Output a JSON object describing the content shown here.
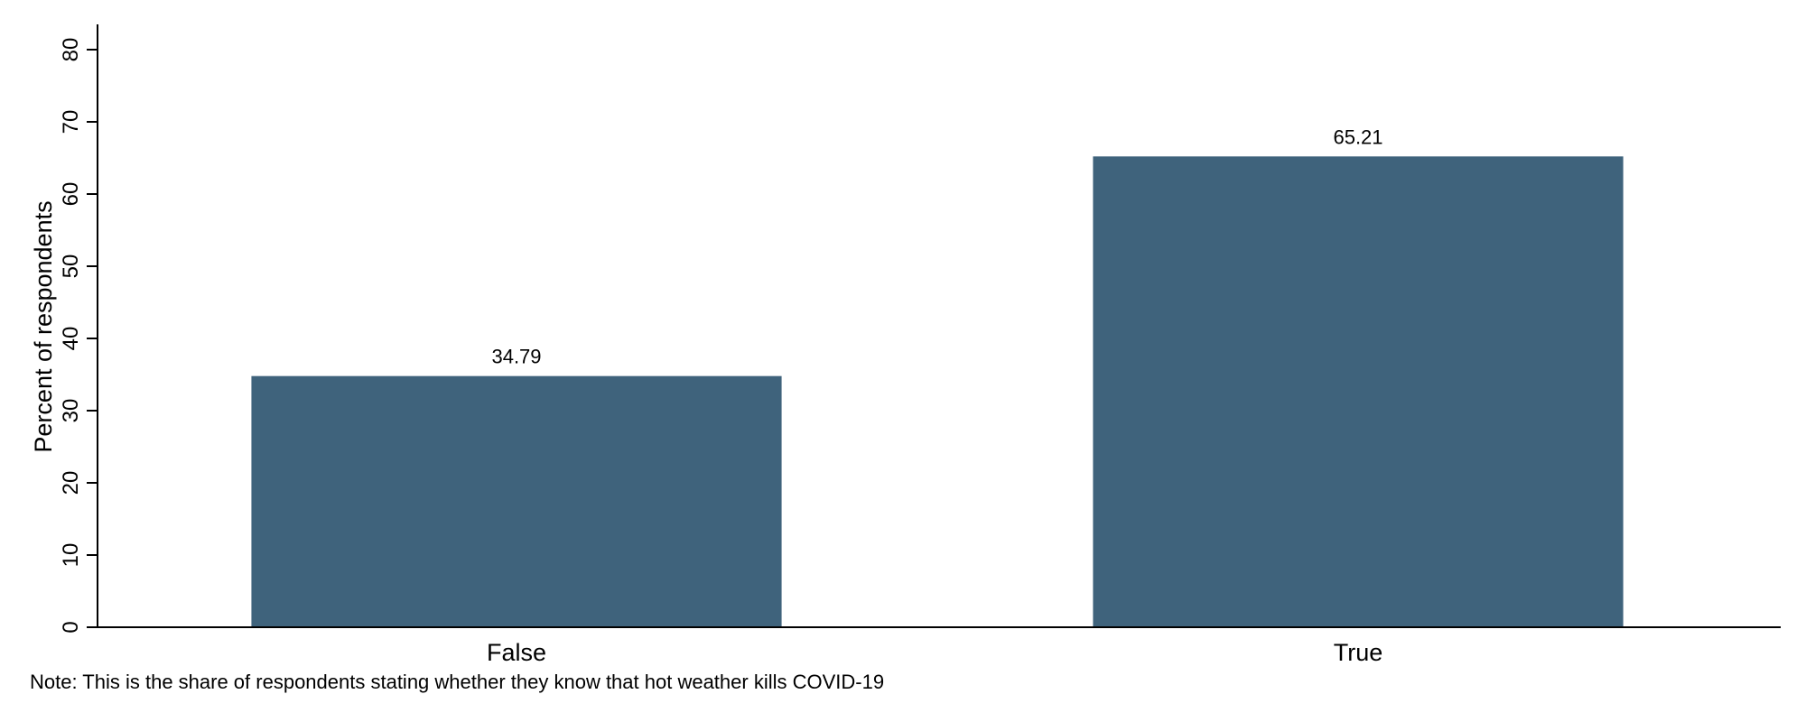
{
  "chart_data": {
    "type": "bar",
    "categories": [
      "False",
      "True"
    ],
    "values": [
      34.79,
      65.21
    ],
    "value_labels": [
      "34.79",
      "65.21"
    ],
    "title": "",
    "xlabel": "",
    "ylabel": "Percent of respondents",
    "ylim": [
      0,
      83
    ],
    "yticks": [
      0,
      10,
      20,
      30,
      40,
      50,
      60,
      70,
      80
    ],
    "grid": false,
    "bar_color": "#3f637c",
    "note": "Note: This is the share of respondents stating whether they know that hot weather kills COVID-19"
  }
}
